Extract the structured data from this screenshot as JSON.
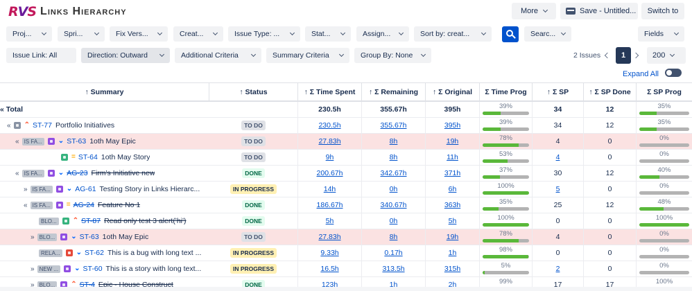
{
  "app": {
    "logo_text": "RVS",
    "title": "Links Hierarchy"
  },
  "header_buttons": {
    "more": "More",
    "save": "Save - Untitled...",
    "switch": "Switch to"
  },
  "filters": [
    {
      "label": "Proj..."
    },
    {
      "label": "Spri..."
    },
    {
      "label": "Fix Vers..."
    },
    {
      "label": "Creat..."
    },
    {
      "label": "Issue Type: ..."
    },
    {
      "label": "Stat..."
    },
    {
      "label": "Assign..."
    },
    {
      "label": "Sort by: creat..."
    },
    {
      "label": "Searc..."
    },
    {
      "label": "Fields"
    }
  ],
  "filters2": [
    {
      "label": "Issue Link: All"
    },
    {
      "label": "Direction: Outward"
    },
    {
      "label": "Additional Criteria"
    },
    {
      "label": "Summary Criteria"
    },
    {
      "label": "Group By: None"
    }
  ],
  "pagination": {
    "count_text": "2 Issues",
    "current_page": "1",
    "page_size": "200"
  },
  "expand_all": "Expand All",
  "columns": [
    "↑ Summary",
    "↑ Status",
    "↑ Σ Time Spent",
    "↑ Σ Remaining",
    "↑ Σ Original",
    "Σ Time Prog",
    "↑ Σ SP",
    "↑ Σ SP Done",
    "Σ SP Prog"
  ],
  "total_row": {
    "label": "« Total",
    "time_spent": "230.5h",
    "remaining": "355.67h",
    "original": "395h",
    "time_prog_pct": 39,
    "time_prog_text": "39%",
    "sp": "34",
    "sp_done": "12",
    "sp_prog_pct": 35,
    "sp_prog_text": "35%"
  },
  "rows": [
    {
      "indent": 10,
      "expander": "«",
      "link_type": "",
      "type": "initiative",
      "prio": "high",
      "key": "ST-77",
      "summary": "Portfolio Initiatives",
      "strike": false,
      "status": "TO DO",
      "status_kind": "todo",
      "time_spent": "230.5h",
      "remaining": "355.67h",
      "original": "395h",
      "time_prog_text": "39%",
      "time_prog_pct": 39,
      "sp": "34",
      "sp_link": false,
      "sp_done": "12",
      "sp_prog_text": "35%",
      "sp_prog_pct": 35,
      "pink": false
    },
    {
      "indent": 22,
      "expander": "«",
      "link_type": "IS FA...",
      "type": "epic",
      "prio": "low",
      "key": "ST-63",
      "summary": "1oth May Epic",
      "strike": false,
      "status": "TO DO",
      "status_kind": "todo",
      "time_spent": "27.83h",
      "remaining": "8h",
      "original": "19h",
      "time_prog_text": "78%",
      "time_prog_pct": 78,
      "sp": "4",
      "sp_link": false,
      "sp_done": "0",
      "sp_prog_text": "0%",
      "sp_prog_pct": 0,
      "pink": true
    },
    {
      "indent": 88,
      "expander": "",
      "link_type": "",
      "type": "story",
      "prio": "med",
      "key": "ST-64",
      "summary": "1oth May Story",
      "strike": false,
      "status": "TO DO",
      "status_kind": "todo",
      "time_spent": "9h",
      "remaining": "8h",
      "original": "11h",
      "time_prog_text": "53%",
      "time_prog_pct": 53,
      "sp": "4",
      "sp_link": true,
      "sp_done": "0",
      "sp_prog_text": "0%",
      "sp_prog_pct": 0,
      "pink": false
    },
    {
      "indent": 22,
      "expander": "«",
      "link_type": "IS FA...",
      "type": "epic",
      "prio": "low",
      "key": "AG-23",
      "summary": "Firm's Initiative new",
      "strike": true,
      "status": "DONE",
      "status_kind": "done",
      "time_spent": "200.67h",
      "remaining": "342.67h",
      "original": "371h",
      "time_prog_text": "37%",
      "time_prog_pct": 37,
      "sp": "30",
      "sp_link": false,
      "sp_done": "12",
      "sp_prog_text": "40%",
      "sp_prog_pct": 40,
      "pink": false
    },
    {
      "indent": 34,
      "expander": "»",
      "link_type": "IS FA...",
      "type": "epic",
      "prio": "low",
      "key": "AG-61",
      "summary": "Testing Story in Links Hierarc...",
      "strike": false,
      "status": "IN PROGRESS",
      "status_kind": "prog",
      "time_spent": "14h",
      "remaining": "0h",
      "original": "6h",
      "time_prog_text": "100%",
      "time_prog_pct": 100,
      "sp": "5",
      "sp_link": true,
      "sp_done": "0",
      "sp_prog_text": "0%",
      "sp_prog_pct": 0,
      "pink": false
    },
    {
      "indent": 34,
      "expander": "«",
      "link_type": "IS FA...",
      "type": "epic",
      "prio": "med",
      "key": "AG-24",
      "summary": "Feature No 1",
      "strike": true,
      "status": "DONE",
      "status_kind": "done",
      "time_spent": "186.67h",
      "remaining": "340.67h",
      "original": "363h",
      "time_prog_text": "35%",
      "time_prog_pct": 35,
      "sp": "25",
      "sp_link": false,
      "sp_done": "12",
      "sp_prog_text": "48%",
      "sp_prog_pct": 48,
      "pink": false
    },
    {
      "indent": 56,
      "expander": "",
      "link_type": "BLO...",
      "type": "story",
      "prio": "high",
      "key": "ST-87",
      "summary": "Read only test 3 alert('hi')",
      "strike": true,
      "status": "DONE",
      "status_kind": "done",
      "time_spent": "5h",
      "remaining": "0h",
      "original": "5h",
      "time_prog_text": "100%",
      "time_prog_pct": 100,
      "sp": "0",
      "sp_link": false,
      "sp_done": "0",
      "sp_prog_text": "100%",
      "sp_prog_pct": 100,
      "pink": false
    },
    {
      "indent": 44,
      "expander": "»",
      "link_type": "BLO...",
      "type": "epic",
      "prio": "low",
      "key": "ST-63",
      "summary": "1oth May Epic",
      "strike": false,
      "status": "TO DO",
      "status_kind": "todo",
      "time_spent": "27.83h",
      "remaining": "8h",
      "original": "19h",
      "time_prog_text": "78%",
      "time_prog_pct": 78,
      "sp": "4",
      "sp_link": false,
      "sp_done": "0",
      "sp_prog_text": "0%",
      "sp_prog_pct": 0,
      "pink": true
    },
    {
      "indent": 56,
      "expander": "",
      "link_type": "RELA...",
      "type": "bug",
      "prio": "low",
      "key": "ST-62",
      "summary": "This is a bug with long text ...",
      "strike": false,
      "status": "IN PROGRESS",
      "status_kind": "prog",
      "time_spent": "9.33h",
      "remaining": "0.17h",
      "original": "1h",
      "time_prog_text": "98%",
      "time_prog_pct": 98,
      "sp": "0",
      "sp_link": false,
      "sp_done": "0",
      "sp_prog_text": "0%",
      "sp_prog_pct": 0,
      "pink": false
    },
    {
      "indent": 44,
      "expander": "»",
      "link_type": "NEW ...",
      "type": "epic",
      "prio": "low",
      "key": "ST-60",
      "summary": "This is a story with long text...",
      "strike": false,
      "status": "IN PROGRESS",
      "status_kind": "prog",
      "time_spent": "16.5h",
      "remaining": "313.5h",
      "original": "315h",
      "time_prog_text": "5%",
      "time_prog_pct": 5,
      "sp": "2",
      "sp_link": true,
      "sp_done": "0",
      "sp_prog_text": "0%",
      "sp_prog_pct": 0,
      "pink": false
    },
    {
      "indent": 44,
      "expander": "»",
      "link_type": "BLO...",
      "type": "epic",
      "prio": "high",
      "key": "ST-4",
      "summary": "Epic - House Construct",
      "strike": true,
      "status": "DONE",
      "status_kind": "done",
      "time_spent": "123h",
      "remaining": "1h",
      "original": "2h",
      "time_prog_text": "99%",
      "time_prog_pct": 99,
      "sp": "17",
      "sp_link": false,
      "sp_done": "17",
      "sp_prog_text": "100%",
      "sp_prog_pct": 100,
      "pink": false
    }
  ],
  "colors": {
    "brand_pink": "#c2185b",
    "brand_purple": "#6a1b9a",
    "primary": "#0052cc",
    "progress_green": "#5ab83a",
    "progress_track": "#b3b3b3",
    "highlight_row": "#fbe2e2"
  }
}
